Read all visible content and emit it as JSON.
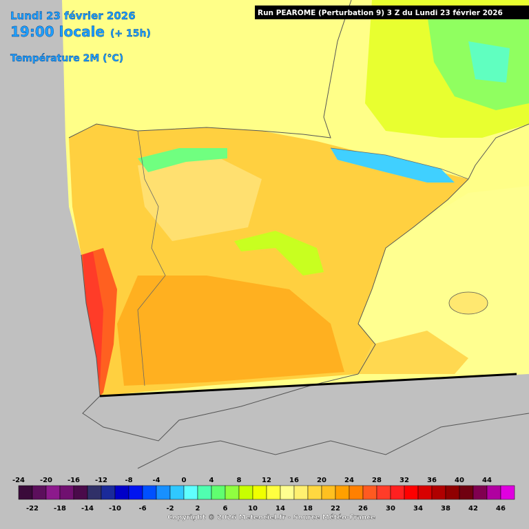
{
  "header": {
    "date": "Lundi 23 février 2026",
    "time": "19:00 locale",
    "lead": "(+ 15h)",
    "parameter": "Température 2M (°C)",
    "run": "Run PEAROME (Perturbation 9) 3 Z du Lundi 23 février 2026"
  },
  "legend": {
    "ticks": [
      -24,
      -22,
      -20,
      -18,
      -16,
      -14,
      -12,
      -10,
      -8,
      -6,
      -4,
      -2,
      0,
      2,
      4,
      6,
      8,
      10,
      12,
      14,
      16,
      18,
      20,
      22,
      24,
      26,
      28,
      30,
      32,
      34,
      36,
      38,
      40,
      42,
      44,
      46
    ],
    "colors": [
      "#3a0a3a",
      "#5c0f5c",
      "#8c1a8c",
      "#701070",
      "#4a0a4a",
      "#303068",
      "#1a2a9a",
      "#0000c8",
      "#0014f0",
      "#0050ff",
      "#1890ff",
      "#30c8ff",
      "#60ffff",
      "#50ffb0",
      "#60ff70",
      "#90ff40",
      "#c8ff00",
      "#f0ff00",
      "#ffff40",
      "#ffff90",
      "#fff070",
      "#ffd840",
      "#ffc020",
      "#ffa000",
      "#ff8000",
      "#ff5a20",
      "#ff3c28",
      "#ff2020",
      "#ff0000",
      "#d80000",
      "#b00000",
      "#900000",
      "#700010",
      "#800050",
      "#b000a0",
      "#e000e0"
    ]
  },
  "footer": {
    "copyright": "Copyright © 2026 Meteociel.fr - Source Météo-France"
  }
}
